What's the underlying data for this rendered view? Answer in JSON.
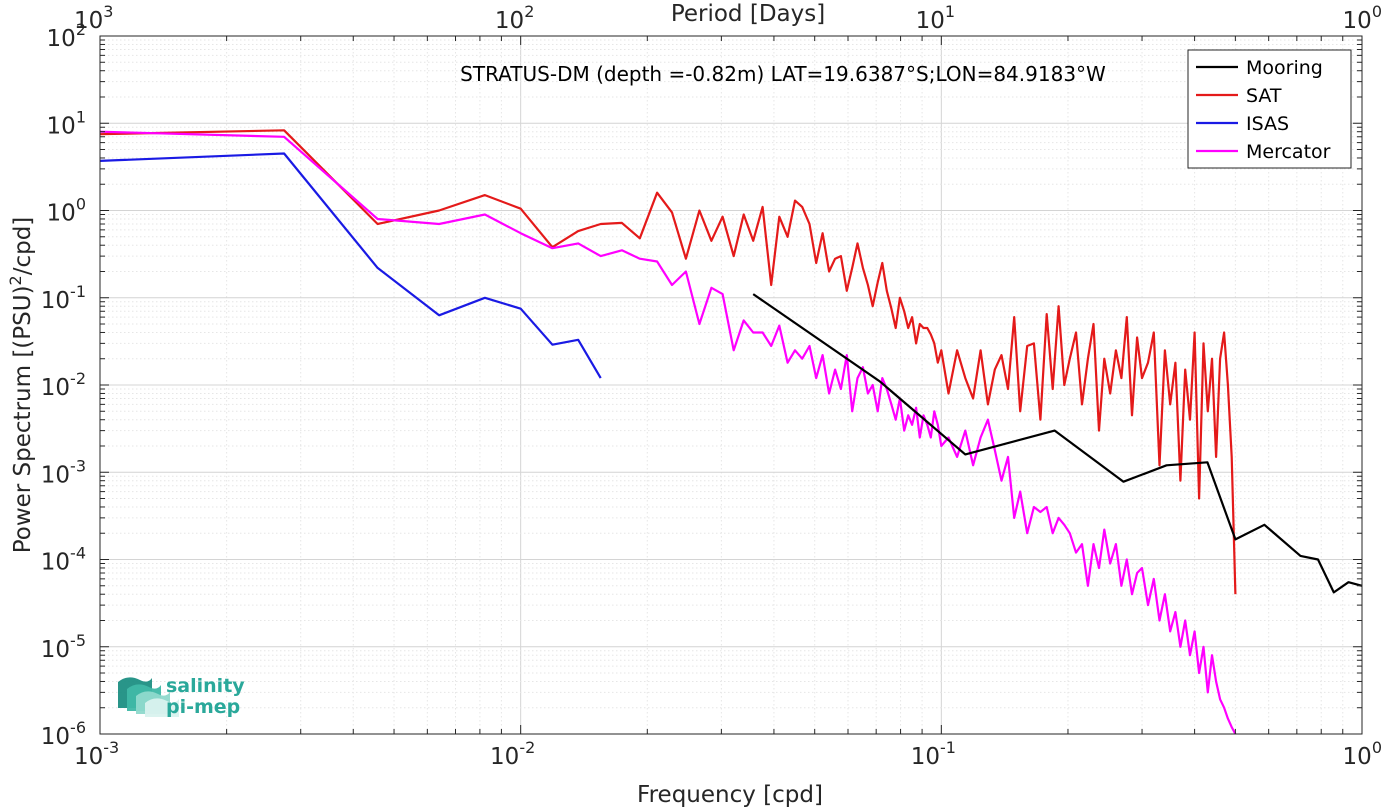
{
  "chart_data": {
    "type": "line",
    "title": "STRATUS-DM (depth =-0.82m) LAT=19.6387°S;LON=84.9183°W",
    "xlabel": "Frequency [cpd]",
    "ylabel": "Power Spectrum [(PSU)²/cpd]",
    "ylabel_parts": {
      "prefix": "Power Spectrum [(PSU)",
      "sup": "2",
      "suffix": "/cpd]"
    },
    "top_xlabel": "Period [Days]",
    "xscale": "log",
    "yscale": "log",
    "xlim": [
      0.001,
      1
    ],
    "ylim": [
      1e-06,
      100
    ],
    "grid": true,
    "legend_position": "top-right",
    "x_ticks": [
      {
        "value": 0.001,
        "base": "10",
        "exp": "-3"
      },
      {
        "value": 0.01,
        "base": "10",
        "exp": "-2"
      },
      {
        "value": 0.1,
        "base": "10",
        "exp": "-1"
      },
      {
        "value": 1,
        "base": "10",
        "exp": "0"
      }
    ],
    "top_ticks": [
      {
        "value": 0.001,
        "base": "10",
        "exp": "3"
      },
      {
        "value": 0.01,
        "base": "10",
        "exp": "2"
      },
      {
        "value": 0.1,
        "base": "10",
        "exp": "1"
      },
      {
        "value": 1,
        "base": "10",
        "exp": "0"
      }
    ],
    "y_ticks": [
      {
        "value": 100,
        "base": "10",
        "exp": "2"
      },
      {
        "value": 10,
        "base": "10",
        "exp": "1"
      },
      {
        "value": 1,
        "base": "10",
        "exp": "0"
      },
      {
        "value": 0.1,
        "base": "10",
        "exp": "-1"
      },
      {
        "value": 0.01,
        "base": "10",
        "exp": "-2"
      },
      {
        "value": 0.001,
        "base": "10",
        "exp": "-3"
      },
      {
        "value": 0.0001,
        "base": "10",
        "exp": "-4"
      },
      {
        "value": 1e-05,
        "base": "10",
        "exp": "-5"
      },
      {
        "value": 1e-06,
        "base": "10",
        "exp": "-6"
      }
    ],
    "series": [
      {
        "name": "Mooring",
        "color": "#000000",
        "x": [
          0.0357,
          0.0714,
          0.114,
          0.186,
          0.271,
          0.343,
          0.429,
          0.5,
          0.586,
          0.714,
          0.786,
          0.857,
          0.929,
          1.0
        ],
        "y": [
          0.11,
          0.011,
          0.0016,
          0.003,
          0.00078,
          0.0012,
          0.0013,
          0.00017,
          0.00025,
          0.00011,
          0.0001,
          4.2e-05,
          5.5e-05,
          5e-05
        ]
      },
      {
        "name": "SAT",
        "color": "#e41a1a",
        "x": [
          0.001,
          0.00274,
          0.00457,
          0.0064,
          0.00822,
          0.01,
          0.0119,
          0.0137,
          0.0155,
          0.0174,
          0.0192,
          0.0211,
          0.0229,
          0.0247,
          0.0266,
          0.0284,
          0.0302,
          0.0321,
          0.0339,
          0.0357,
          0.0376,
          0.0394,
          0.0412,
          0.0431,
          0.0449,
          0.0467,
          0.0486,
          0.0504,
          0.0522,
          0.0541,
          0.0559,
          0.0577,
          0.0596,
          0.0614,
          0.0632,
          0.0651,
          0.0669,
          0.0687,
          0.0706,
          0.0724,
          0.0742,
          0.0761,
          0.0779,
          0.0797,
          0.0816,
          0.0834,
          0.0852,
          0.0871,
          0.0889,
          0.0907,
          0.0926,
          0.0944,
          0.0962,
          0.0981,
          0.1,
          0.104,
          0.109,
          0.114,
          0.119,
          0.124,
          0.129,
          0.134,
          0.139,
          0.144,
          0.149,
          0.154,
          0.16,
          0.166,
          0.172,
          0.178,
          0.184,
          0.19,
          0.196,
          0.202,
          0.209,
          0.216,
          0.223,
          0.23,
          0.237,
          0.244,
          0.252,
          0.26,
          0.268,
          0.276,
          0.284,
          0.292,
          0.3,
          0.31,
          0.32,
          0.33,
          0.34,
          0.35,
          0.36,
          0.37,
          0.38,
          0.39,
          0.4,
          0.41,
          0.42,
          0.43,
          0.44,
          0.45,
          0.46,
          0.47,
          0.48,
          0.49,
          0.5
        ],
        "y": [
          7.5,
          8.3,
          0.7,
          1.0,
          1.5,
          1.05,
          0.38,
          0.58,
          0.7,
          0.72,
          0.48,
          1.6,
          0.95,
          0.28,
          1.0,
          0.45,
          0.85,
          0.3,
          0.9,
          0.45,
          1.1,
          0.14,
          0.85,
          0.5,
          1.3,
          1.1,
          0.7,
          0.25,
          0.55,
          0.2,
          0.28,
          0.3,
          0.12,
          0.22,
          0.42,
          0.22,
          0.14,
          0.08,
          0.15,
          0.25,
          0.12,
          0.075,
          0.045,
          0.1,
          0.07,
          0.045,
          0.06,
          0.03,
          0.05,
          0.045,
          0.045,
          0.038,
          0.03,
          0.018,
          0.025,
          0.008,
          0.025,
          0.012,
          0.007,
          0.025,
          0.006,
          0.015,
          0.022,
          0.009,
          0.06,
          0.005,
          0.028,
          0.03,
          0.004,
          0.065,
          0.009,
          0.08,
          0.01,
          0.02,
          0.04,
          0.006,
          0.02,
          0.05,
          0.003,
          0.02,
          0.008,
          0.025,
          0.012,
          0.06,
          0.0045,
          0.035,
          0.012,
          0.018,
          0.04,
          0.0012,
          0.025,
          0.006,
          0.018,
          0.0008,
          0.015,
          0.004,
          0.04,
          0.0005,
          0.03,
          0.005,
          0.02,
          0.0015,
          0.02,
          0.04,
          0.01,
          0.0015,
          4e-05
        ],
        "dashed": false
      },
      {
        "name": "ISAS",
        "color": "#1a1ae4",
        "x": [
          0.001,
          0.00274,
          0.00457,
          0.0064,
          0.00822,
          0.01,
          0.0119,
          0.0137,
          0.0155
        ],
        "y": [
          3.7,
          4.5,
          0.22,
          0.063,
          0.1,
          0.075,
          0.029,
          0.033,
          0.012
        ]
      },
      {
        "name": "Mercator",
        "color": "#ff00ff",
        "x": [
          0.001,
          0.00274,
          0.00457,
          0.0064,
          0.00822,
          0.01,
          0.0119,
          0.0137,
          0.0155,
          0.0174,
          0.0192,
          0.0211,
          0.0229,
          0.0247,
          0.0266,
          0.0284,
          0.0302,
          0.0321,
          0.0339,
          0.0357,
          0.0376,
          0.0394,
          0.0412,
          0.0431,
          0.0449,
          0.0467,
          0.0486,
          0.0504,
          0.0522,
          0.0541,
          0.0559,
          0.0577,
          0.0596,
          0.0614,
          0.0632,
          0.0651,
          0.0669,
          0.0687,
          0.0706,
          0.0724,
          0.0742,
          0.0761,
          0.0779,
          0.0797,
          0.0816,
          0.0834,
          0.0852,
          0.0871,
          0.0889,
          0.0907,
          0.0926,
          0.0944,
          0.0962,
          0.0981,
          0.1,
          0.104,
          0.109,
          0.114,
          0.119,
          0.124,
          0.129,
          0.134,
          0.139,
          0.144,
          0.149,
          0.154,
          0.16,
          0.166,
          0.172,
          0.178,
          0.184,
          0.19,
          0.196,
          0.202,
          0.209,
          0.216,
          0.223,
          0.23,
          0.237,
          0.244,
          0.252,
          0.26,
          0.268,
          0.276,
          0.284,
          0.292,
          0.3,
          0.31,
          0.32,
          0.33,
          0.34,
          0.35,
          0.36,
          0.37,
          0.38,
          0.39,
          0.4,
          0.41,
          0.42,
          0.43,
          0.44,
          0.45,
          0.46,
          0.47,
          0.48,
          0.49,
          0.5
        ],
        "y": [
          8.0,
          7.0,
          0.8,
          0.7,
          0.9,
          0.55,
          0.37,
          0.42,
          0.3,
          0.35,
          0.28,
          0.26,
          0.14,
          0.2,
          0.05,
          0.13,
          0.11,
          0.025,
          0.055,
          0.04,
          0.04,
          0.028,
          0.048,
          0.018,
          0.025,
          0.02,
          0.028,
          0.012,
          0.022,
          0.008,
          0.015,
          0.009,
          0.022,
          0.005,
          0.012,
          0.016,
          0.008,
          0.01,
          0.005,
          0.012,
          0.009,
          0.006,
          0.004,
          0.007,
          0.003,
          0.0045,
          0.0035,
          0.0055,
          0.0025,
          0.0045,
          0.0035,
          0.0025,
          0.005,
          0.0035,
          0.002,
          0.0025,
          0.0015,
          0.003,
          0.0012,
          0.0025,
          0.004,
          0.0018,
          0.0008,
          0.0015,
          0.0003,
          0.0006,
          0.0002,
          0.0004,
          0.00035,
          0.0004,
          0.0002,
          0.0003,
          0.00025,
          0.0002,
          0.00012,
          0.00015,
          5e-05,
          0.00015,
          8e-05,
          0.00022,
          9e-05,
          0.00015,
          5e-05,
          0.0001,
          4e-05,
          7e-05,
          8e-05,
          3e-05,
          6e-05,
          2e-05,
          4e-05,
          1.5e-05,
          2.5e-05,
          1e-05,
          2e-05,
          8e-06,
          1.5e-05,
          5e-06,
          1e-05,
          3e-06,
          8e-06,
          4e-06,
          2.5e-06,
          2e-06,
          1.5e-06,
          1.2e-06,
          1e-06
        ]
      }
    ]
  },
  "logo": {
    "line1": "salinity",
    "line2": "pi-mep",
    "colors": [
      "#1e8f83",
      "#3fb8a6",
      "#8fd9cc",
      "#d9f2ee"
    ]
  }
}
